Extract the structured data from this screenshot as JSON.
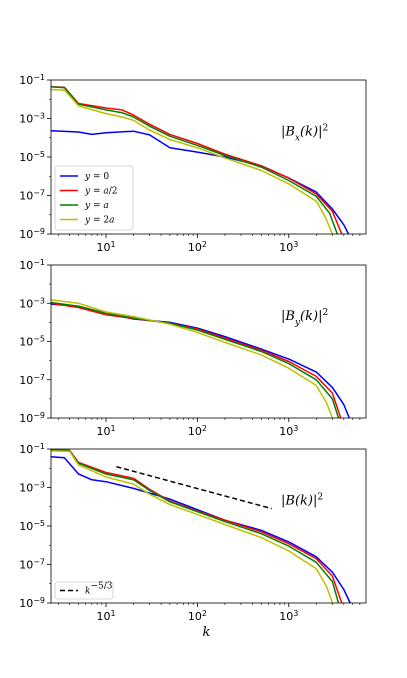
{
  "chart_data": [
    {
      "type": "line",
      "annotation": "|B_x(k)|²",
      "xscale": "log",
      "yscale": "log",
      "xlim": [
        2.5,
        7000
      ],
      "ylim": [
        1e-09,
        0.1
      ],
      "xticks": [
        10,
        100,
        1000
      ],
      "xtick_labels": [
        "10¹",
        "10²",
        "10³"
      ],
      "yticks": [
        1e-09,
        1e-07,
        1e-05,
        0.001,
        0.1
      ],
      "ytick_labels": [
        "10⁻⁹",
        "10⁻⁷",
        "10⁻⁵",
        "10⁻³",
        "10⁻¹"
      ],
      "legend": {
        "position": "lower-left",
        "entries": [
          "y = 0",
          "y = a/2",
          "y = a",
          "y = 2a"
        ]
      },
      "series": [
        {
          "name": "y = 0",
          "color": "#0000ff",
          "points": [
            [
              2.5,
              0.00023
            ],
            [
              5,
              0.0002
            ],
            [
              7,
              0.00015
            ],
            [
              10,
              0.00018
            ],
            [
              20,
              0.00022
            ],
            [
              30,
              0.00014
            ],
            [
              50,
              3e-05
            ],
            [
              100,
              1.8e-05
            ],
            [
              200,
              1e-05
            ],
            [
              500,
              3.5e-06
            ],
            [
              1000,
              8e-07
            ],
            [
              2000,
              1.5e-07
            ],
            [
              3000,
              2e-08
            ],
            [
              4000,
              3e-09
            ],
            [
              4500,
              1e-09
            ]
          ]
        },
        {
          "name": "y = a/2",
          "color": "#ff0000",
          "points": [
            [
              2.5,
              0.045
            ],
            [
              3.5,
              0.042
            ],
            [
              5,
              0.006
            ],
            [
              10,
              0.0035
            ],
            [
              15,
              0.0028
            ],
            [
              20,
              0.0015
            ],
            [
              30,
              0.0005
            ],
            [
              50,
              0.00015
            ],
            [
              100,
              5e-05
            ],
            [
              200,
              1.4e-05
            ],
            [
              500,
              3.5e-06
            ],
            [
              1000,
              8e-07
            ],
            [
              2000,
              1.2e-07
            ],
            [
              3000,
              1.5e-08
            ],
            [
              3800,
              1e-09
            ]
          ]
        },
        {
          "name": "y = a",
          "color": "#008000",
          "points": [
            [
              2.5,
              0.045
            ],
            [
              3.5,
              0.04
            ],
            [
              5,
              0.0055
            ],
            [
              10,
              0.0028
            ],
            [
              15,
              0.002
            ],
            [
              20,
              0.0012
            ],
            [
              30,
              0.0004
            ],
            [
              50,
              0.00012
            ],
            [
              100,
              4e-05
            ],
            [
              200,
              1.2e-05
            ],
            [
              500,
              3e-06
            ],
            [
              1000,
              6e-07
            ],
            [
              2000,
              9e-08
            ],
            [
              2800,
              1.2e-08
            ],
            [
              3400,
              1e-09
            ]
          ]
        },
        {
          "name": "y = 2a",
          "color": "#bfbf00",
          "points": [
            [
              2.5,
              0.032
            ],
            [
              3.5,
              0.03
            ],
            [
              5,
              0.0045
            ],
            [
              10,
              0.0018
            ],
            [
              15,
              0.0012
            ],
            [
              20,
              0.0008
            ],
            [
              30,
              0.00025
            ],
            [
              50,
              8e-05
            ],
            [
              100,
              3e-05
            ],
            [
              200,
              9e-06
            ],
            [
              500,
              2e-06
            ],
            [
              1000,
              4e-07
            ],
            [
              2000,
              5e-08
            ],
            [
              2500,
              8e-09
            ],
            [
              3000,
              1e-09
            ]
          ]
        }
      ]
    },
    {
      "type": "line",
      "annotation": "|B_y(k)|²",
      "xscale": "log",
      "yscale": "log",
      "xlim": [
        2.5,
        7000
      ],
      "ylim": [
        1e-09,
        0.1
      ],
      "xticks": [
        10,
        100,
        1000
      ],
      "xtick_labels": [
        "10¹",
        "10²",
        "10³"
      ],
      "yticks": [
        1e-09,
        1e-07,
        1e-05,
        0.001,
        0.1
      ],
      "ytick_labels": [
        "10⁻⁹",
        "10⁻⁷",
        "10⁻⁵",
        "10⁻³",
        "10⁻¹"
      ],
      "series": [
        {
          "name": "y = 0",
          "color": "#0000ff",
          "points": [
            [
              2.5,
              0.0009
            ],
            [
              5,
              0.0007
            ],
            [
              10,
              0.0003
            ],
            [
              20,
              0.00015
            ],
            [
              50,
              0.0001
            ],
            [
              100,
              5e-05
            ],
            [
              200,
              1.8e-05
            ],
            [
              500,
              4e-06
            ],
            [
              1000,
              1.2e-06
            ],
            [
              2000,
              2.5e-07
            ],
            [
              3000,
              4e-08
            ],
            [
              4000,
              5e-09
            ],
            [
              4600,
              1e-09
            ]
          ]
        },
        {
          "name": "y = a/2",
          "color": "#ff0000",
          "points": [
            [
              2.5,
              0.001
            ],
            [
              5,
              0.0006
            ],
            [
              10,
              0.00025
            ],
            [
              20,
              0.00016
            ],
            [
              50,
              9e-05
            ],
            [
              100,
              4.5e-05
            ],
            [
              200,
              1.5e-05
            ],
            [
              500,
              3.5e-06
            ],
            [
              1000,
              9e-07
            ],
            [
              2000,
              1.5e-07
            ],
            [
              3000,
              2e-08
            ],
            [
              3700,
              1e-09
            ]
          ]
        },
        {
          "name": "y = a",
          "color": "#008000",
          "points": [
            [
              2.5,
              0.0011
            ],
            [
              5,
              0.0007
            ],
            [
              10,
              0.0003
            ],
            [
              20,
              0.00017
            ],
            [
              50,
              9e-05
            ],
            [
              100,
              4e-05
            ],
            [
              200,
              1.3e-05
            ],
            [
              500,
              3e-06
            ],
            [
              1000,
              7e-07
            ],
            [
              2000,
              1e-07
            ],
            [
              3000,
              1e-08
            ],
            [
              3500,
              1e-09
            ]
          ]
        },
        {
          "name": "y = 2a",
          "color": "#bfbf00",
          "points": [
            [
              2.5,
              0.0015
            ],
            [
              5,
              0.001
            ],
            [
              10,
              0.00035
            ],
            [
              20,
              0.0002
            ],
            [
              50,
              8e-05
            ],
            [
              100,
              3e-05
            ],
            [
              200,
              9e-06
            ],
            [
              500,
              2e-06
            ],
            [
              1000,
              4e-07
            ],
            [
              2000,
              5e-08
            ],
            [
              2600,
              6e-09
            ],
            [
              3000,
              1e-09
            ]
          ]
        }
      ]
    },
    {
      "type": "line",
      "annotation": "|B(k)|²",
      "xscale": "log",
      "yscale": "log",
      "xlim": [
        2.5,
        7000
      ],
      "ylim": [
        1e-09,
        0.1
      ],
      "xticks": [
        10,
        100,
        1000
      ],
      "xtick_labels": [
        "10¹",
        "10²",
        "10³"
      ],
      "yticks": [
        1e-09,
        1e-07,
        1e-05,
        0.001,
        0.1
      ],
      "ytick_labels": [
        "10⁻⁹",
        "10⁻⁷",
        "10⁻⁵",
        "10⁻³",
        "10⁻¹"
      ],
      "xlabel": "k",
      "legend": {
        "position": "lower-left",
        "entries": [
          "k^{-5/3}"
        ]
      },
      "reference_line": {
        "label": "k^{-5/3}",
        "color": "#000000",
        "style": "dashed",
        "points": [
          [
            13,
            0.012
          ],
          [
            650,
            8e-05
          ]
        ]
      },
      "series": [
        {
          "name": "y = 0",
          "color": "#0000ff",
          "points": [
            [
              2.5,
              0.04
            ],
            [
              3.5,
              0.035
            ],
            [
              5,
              0.005
            ],
            [
              7,
              0.0025
            ],
            [
              10,
              0.002
            ],
            [
              20,
              0.0009
            ],
            [
              50,
              0.00025
            ],
            [
              100,
              7e-05
            ],
            [
              200,
              2e-05
            ],
            [
              500,
              6e-06
            ],
            [
              1000,
              1.5e-06
            ],
            [
              2000,
              2.5e-07
            ],
            [
              3000,
              4e-08
            ],
            [
              4000,
              5e-09
            ],
            [
              4700,
              1e-09
            ]
          ]
        },
        {
          "name": "y = a/2",
          "color": "#ff0000",
          "points": [
            [
              2.5,
              0.09
            ],
            [
              4,
              0.085
            ],
            [
              5,
              0.02
            ],
            [
              10,
              0.006
            ],
            [
              20,
              0.003
            ],
            [
              30,
              0.0008
            ],
            [
              50,
              0.0002
            ],
            [
              100,
              6e-05
            ],
            [
              200,
              2e-05
            ],
            [
              500,
              5e-06
            ],
            [
              1000,
              1.2e-06
            ],
            [
              2000,
              2e-07
            ],
            [
              3000,
              2.5e-08
            ],
            [
              3800,
              1e-09
            ]
          ]
        },
        {
          "name": "y = a",
          "color": "#008000",
          "points": [
            [
              2.5,
              0.09
            ],
            [
              4,
              0.08
            ],
            [
              5,
              0.018
            ],
            [
              10,
              0.005
            ],
            [
              20,
              0.0025
            ],
            [
              30,
              0.0007
            ],
            [
              50,
              0.00018
            ],
            [
              100,
              5.5e-05
            ],
            [
              200,
              1.7e-05
            ],
            [
              500,
              4e-06
            ],
            [
              1000,
              9e-07
            ],
            [
              2000,
              1.3e-07
            ],
            [
              3000,
              1.3e-08
            ],
            [
              3500,
              1e-09
            ]
          ]
        },
        {
          "name": "y = 2a",
          "color": "#bfbf00",
          "points": [
            [
              2.5,
              0.08
            ],
            [
              4,
              0.075
            ],
            [
              5,
              0.015
            ],
            [
              10,
              0.0035
            ],
            [
              20,
              0.0015
            ],
            [
              30,
              0.00045
            ],
            [
              50,
              0.00013
            ],
            [
              100,
              4e-05
            ],
            [
              200,
              1.2e-05
            ],
            [
              500,
              2.5e-06
            ],
            [
              1000,
              5e-07
            ],
            [
              2000,
              6e-08
            ],
            [
              2600,
              7e-09
            ],
            [
              3000,
              1e-09
            ]
          ]
        }
      ]
    }
  ]
}
